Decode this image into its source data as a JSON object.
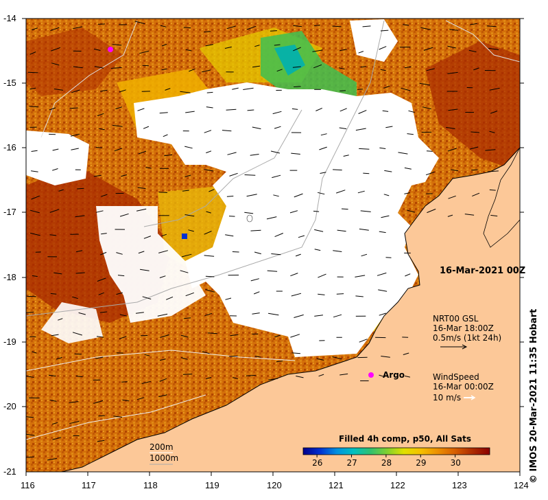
{
  "map": {
    "lon_ticks": [
      "116",
      "117",
      "118",
      "119",
      "120",
      "121",
      "122",
      "123",
      "124"
    ],
    "lat_ticks": [
      "-14",
      "-15",
      "-16",
      "-17",
      "-18",
      "-19",
      "-20",
      "-21"
    ],
    "lon_range": [
      116,
      124
    ],
    "lat_range": [
      -14,
      -21
    ],
    "date_label": "16-Mar-2021 00Z",
    "current_legend": {
      "line1": "NRT00 GSL",
      "line2": "16-Mar 18:00Z",
      "line3": "0.5m/s (1kt 24h)"
    },
    "wind_legend": {
      "line1": "WindSpeed",
      "line2": "16-Mar 00:00Z",
      "line3": "10 m/s"
    },
    "argo_label": "Argo",
    "depth_legend": {
      "contour1": "200m",
      "contour2": "1000m"
    },
    "colorbar": {
      "title": "Filled 4h comp, p50, All Sats",
      "ticks": [
        "26",
        "27",
        "28",
        "29",
        "30"
      ],
      "range": [
        25.6,
        31.0
      ],
      "colors": [
        "#00008b",
        "#0030d0",
        "#0090e0",
        "#00c0c0",
        "#30c070",
        "#80d030",
        "#e0e000",
        "#f5c000",
        "#ec9000",
        "#d86000",
        "#b03000",
        "#8b0000"
      ]
    },
    "credit": "© IMOS 20-Mar-2021 11:35 Hobart",
    "colors": {
      "land": "#fcc898",
      "cloud": "#ffffff",
      "coastline": "#000000",
      "isobath": "#aaaaaa"
    }
  }
}
